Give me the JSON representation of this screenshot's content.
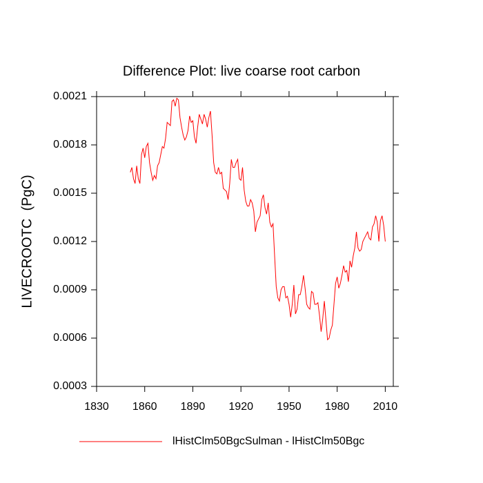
{
  "chart_data": {
    "type": "line",
    "title": "Difference Plot: live coarse root carbon",
    "y_label": "LIVECROOTC  (PgC)",
    "xlim": [
      1830,
      2015
    ],
    "xticks": [
      1830,
      1860,
      1890,
      1920,
      1950,
      1980,
      2010
    ],
    "ylim": [
      0.0003,
      0.0021
    ],
    "yticks": [
      0.0003,
      0.0006,
      0.0009,
      0.0012,
      0.0015,
      0.0018,
      0.0021
    ],
    "series": [
      {
        "name": "lHistClm50BgcSulman - lHistClm50Bgc",
        "color": "#ff0000",
        "x": [
          1851,
          1852,
          1853,
          1854,
          1855,
          1856,
          1857,
          1858,
          1859,
          1860,
          1861,
          1862,
          1863,
          1864,
          1865,
          1866,
          1867,
          1868,
          1869,
          1870,
          1871,
          1872,
          1873,
          1874,
          1875,
          1876,
          1877,
          1878,
          1879,
          1880,
          1881,
          1882,
          1883,
          1884,
          1885,
          1886,
          1887,
          1888,
          1889,
          1890,
          1891,
          1892,
          1893,
          1894,
          1895,
          1896,
          1897,
          1898,
          1899,
          1900,
          1901,
          1902,
          1903,
          1904,
          1905,
          1906,
          1907,
          1908,
          1909,
          1910,
          1911,
          1912,
          1913,
          1914,
          1915,
          1916,
          1917,
          1918,
          1919,
          1920,
          1921,
          1922,
          1923,
          1924,
          1925,
          1926,
          1927,
          1928,
          1929,
          1930,
          1931,
          1932,
          1933,
          1934,
          1935,
          1936,
          1937,
          1938,
          1939,
          1940,
          1941,
          1942,
          1943,
          1944,
          1945,
          1946,
          1947,
          1948,
          1949,
          1950,
          1951,
          1952,
          1953,
          1954,
          1955,
          1956,
          1957,
          1958,
          1959,
          1960,
          1961,
          1962,
          1963,
          1964,
          1965,
          1966,
          1967,
          1968,
          1969,
          1970,
          1971,
          1972,
          1973,
          1974,
          1975,
          1976,
          1977,
          1978,
          1979,
          1980,
          1981,
          1982,
          1983,
          1984,
          1985,
          1986,
          1987,
          1988,
          1989,
          1990,
          1991,
          1992,
          1993,
          1994,
          1995,
          1996,
          1997,
          1998,
          1999,
          2000,
          2001,
          2002,
          2003,
          2004,
          2005,
          2006,
          2007,
          2008,
          2009,
          2010
        ],
        "values": [
          0.00163,
          0.00166,
          0.00159,
          0.00156,
          0.00167,
          0.00159,
          0.00156,
          0.00174,
          0.00178,
          0.00172,
          0.00179,
          0.00181,
          0.00169,
          0.00163,
          0.00158,
          0.00161,
          0.00159,
          0.00167,
          0.00169,
          0.00174,
          0.00179,
          0.00178,
          0.00184,
          0.00194,
          0.00193,
          0.00192,
          0.00207,
          0.00208,
          0.00204,
          0.00209,
          0.00208,
          0.00197,
          0.00191,
          0.00186,
          0.00183,
          0.00185,
          0.00189,
          0.00198,
          0.00194,
          0.00195,
          0.00185,
          0.00181,
          0.00191,
          0.00199,
          0.00196,
          0.00193,
          0.00199,
          0.00196,
          0.00191,
          0.00197,
          0.00201,
          0.00186,
          0.00169,
          0.00163,
          0.00162,
          0.00166,
          0.00162,
          0.00163,
          0.00153,
          0.00152,
          0.00151,
          0.00146,
          0.00156,
          0.00171,
          0.00166,
          0.00166,
          0.00169,
          0.00171,
          0.00159,
          0.00158,
          0.00166,
          0.00152,
          0.00145,
          0.00142,
          0.00142,
          0.00146,
          0.00144,
          0.00139,
          0.00126,
          0.00132,
          0.00134,
          0.00136,
          0.00146,
          0.00149,
          0.00141,
          0.00137,
          0.00144,
          0.00132,
          0.00129,
          0.00131,
          0.00111,
          0.00092,
          0.00085,
          0.00083,
          0.0009,
          0.00092,
          0.00092,
          0.00085,
          0.00086,
          0.00081,
          0.00073,
          0.00081,
          0.00093,
          0.00075,
          0.00078,
          0.00087,
          0.00087,
          0.00092,
          0.00099,
          0.00091,
          0.00081,
          0.00079,
          0.00078,
          0.00089,
          0.00088,
          0.00081,
          0.00081,
          0.00082,
          0.00074,
          0.00064,
          0.00072,
          0.00083,
          0.00071,
          0.00059,
          0.0006,
          0.00065,
          0.00068,
          0.00081,
          0.00094,
          0.00098,
          0.00091,
          0.00094,
          0.00099,
          0.00105,
          0.00101,
          0.00102,
          0.00095,
          0.00108,
          0.00104,
          0.00111,
          0.00116,
          0.00126,
          0.00116,
          0.00114,
          0.00115,
          0.0012,
          0.00122,
          0.00124,
          0.00126,
          0.00122,
          0.00121,
          0.00129,
          0.00131,
          0.00136,
          0.00132,
          0.0012,
          0.00133,
          0.00136,
          0.0013,
          0.0012
        ]
      }
    ]
  }
}
